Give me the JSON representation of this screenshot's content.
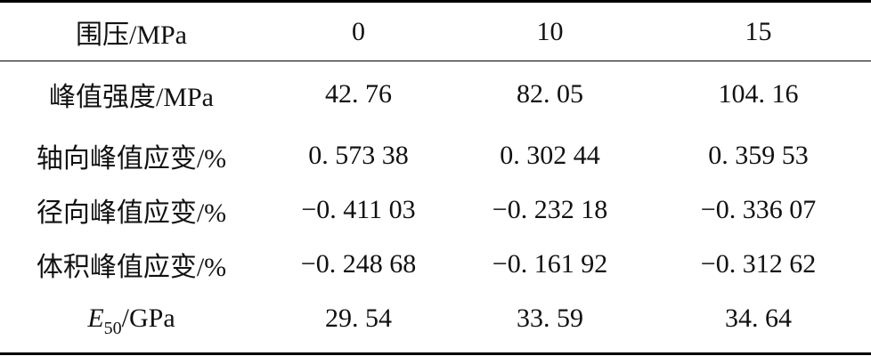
{
  "table": {
    "header": {
      "label": "围压/MPa",
      "values": [
        "0",
        "10",
        "15"
      ]
    },
    "rows": [
      {
        "label": "峰值强度/MPa",
        "values": [
          "42. 76",
          "82. 05",
          "104. 16"
        ]
      },
      {
        "label": "轴向峰值应变/%",
        "values": [
          "0. 573 38",
          "0. 302 44",
          "0. 359 53"
        ]
      },
      {
        "label": "径向峰值应变/%",
        "values": [
          "−0. 411 03",
          "−0. 232 18",
          "−0. 336 07"
        ]
      },
      {
        "label": "体积峰值应变/%",
        "values": [
          "−0. 248 68",
          "−0. 161 92",
          "−0. 312 62"
        ]
      },
      {
        "label_symbol": "E",
        "label_subscript": "50",
        "label_unit": "/GPa",
        "values": [
          "29. 54",
          "33. 59",
          "34. 64"
        ]
      }
    ]
  }
}
